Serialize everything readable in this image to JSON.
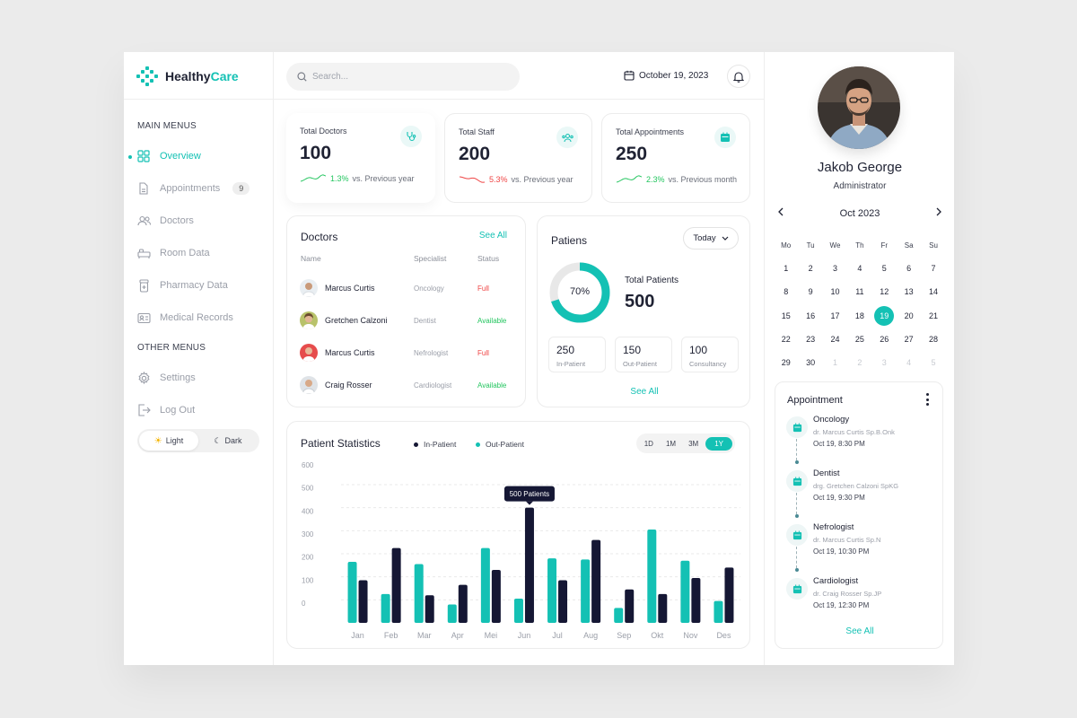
{
  "brand": {
    "name_part1": "Healthy",
    "name_part2": "Care"
  },
  "sidebar": {
    "main_heading": "MAIN MENUS",
    "other_heading": "OTHER MENUS",
    "main_items": [
      {
        "label": "Overview",
        "icon": "grid-icon",
        "active": true
      },
      {
        "label": "Appointments",
        "icon": "document-icon",
        "badge": "9"
      },
      {
        "label": "Doctors",
        "icon": "users-icon"
      },
      {
        "label": "Room Data",
        "icon": "bed-icon"
      },
      {
        "label": "Pharmacy Data",
        "icon": "pill-bottle-icon"
      },
      {
        "label": "Medical Records",
        "icon": "id-card-icon"
      }
    ],
    "other_items": [
      {
        "label": "Settings",
        "icon": "gear-icon"
      },
      {
        "label": "Log Out",
        "icon": "logout-icon"
      }
    ],
    "theme": {
      "light": "Light",
      "dark": "Dark",
      "selected": "Light"
    }
  },
  "header": {
    "search_placeholder": "Search...",
    "date": "October 19, 2023"
  },
  "stats": [
    {
      "title": "Total Doctors",
      "value": "100",
      "change": "1.3%",
      "direction": "up",
      "suffix": "vs. Previous year",
      "icon": "stethoscope-icon"
    },
    {
      "title": "Total Staff",
      "value": "200",
      "change": "5.3%",
      "direction": "down",
      "suffix": "vs. Previous year",
      "icon": "staff-icon"
    },
    {
      "title": "Total Appointments",
      "value": "250",
      "change": "2.3%",
      "direction": "up",
      "suffix": "vs. Previous month",
      "icon": "calendar-icon"
    }
  ],
  "doctors_card": {
    "title": "Doctors",
    "see_all": "See All",
    "columns": [
      "Name",
      "Specialist",
      "Status"
    ],
    "rows": [
      {
        "name": "Marcus Curtis",
        "specialist": "Oncology",
        "status": "Full"
      },
      {
        "name": "Gretchen Calzoni",
        "specialist": "Dentist",
        "status": "Available"
      },
      {
        "name": "Marcus Curtis",
        "specialist": "Nefrologist",
        "status": "Full"
      },
      {
        "name": "Craig Rosser",
        "specialist": "Cardiologist",
        "status": "Available"
      }
    ]
  },
  "patients_card": {
    "title": "Patiens",
    "filter": "Today",
    "percent": "70%",
    "percent_value": 70,
    "total_label": "Total Patients",
    "total_value": "500",
    "boxes": [
      {
        "value": "250",
        "label": "In-Patient"
      },
      {
        "value": "150",
        "label": "Out-Patient"
      },
      {
        "value": "100",
        "label": "Consultancy"
      }
    ],
    "see_all": "See All"
  },
  "statistics": {
    "title": "Patient Statistics",
    "legend_in": "In-Patient",
    "legend_out": "Out-Patient",
    "ranges": [
      "1D",
      "1M",
      "3M",
      "1Y"
    ],
    "selected_range": "1Y",
    "tooltip": "500 Patients",
    "colors": {
      "out": "#14c1b4",
      "in": "#151734"
    }
  },
  "chart_data": {
    "type": "bar",
    "categories": [
      "Jan",
      "Feb",
      "Mar",
      "Apr",
      "Mei",
      "Jun",
      "Jul",
      "Aug",
      "Sep",
      "Okt",
      "Nov",
      "Des"
    ],
    "series": [
      {
        "name": "Out-Patient",
        "values": [
          265,
          125,
          255,
          80,
          325,
          105,
          280,
          275,
          65,
          405,
          270,
          95
        ]
      },
      {
        "name": "In-Patient",
        "values": [
          185,
          325,
          120,
          165,
          230,
          500,
          185,
          360,
          145,
          125,
          195,
          240
        ]
      }
    ],
    "ylim": [
      0,
      600
    ],
    "yticks": [
      "0",
      "100",
      "200",
      "300",
      "400",
      "500",
      "600"
    ],
    "grid": true
  },
  "profile": {
    "name": "Jakob George",
    "role": "Administrator"
  },
  "calendar": {
    "month": "Oct 2023",
    "weekdays": [
      "Mo",
      "Tu",
      "We",
      "Th",
      "Fr",
      "Sa",
      "Su"
    ],
    "weeks": [
      [
        "1",
        "2",
        "3",
        "4",
        "5",
        "6",
        "7"
      ],
      [
        "8",
        "9",
        "10",
        "11",
        "12",
        "13",
        "14"
      ],
      [
        "15",
        "16",
        "17",
        "18",
        "19",
        "20",
        "21"
      ],
      [
        "22",
        "23",
        "24",
        "25",
        "26",
        "27",
        "28"
      ],
      [
        "29",
        "30",
        "1",
        "2",
        "3",
        "4",
        "5"
      ]
    ],
    "selected": "19"
  },
  "appointments": {
    "title": "Appointment",
    "items": [
      {
        "name": "Oncology",
        "doctor": "dr. Marcus Curtis Sp.B.Onk",
        "time": "Oct 19, 8:30 PM"
      },
      {
        "name": "Dentist",
        "doctor": "drg. Gretchen Calzoni SpKG",
        "time": "Oct 19, 9:30 PM"
      },
      {
        "name": "Nefrologist",
        "doctor": "dr. Marcus Curtis Sp.N",
        "time": "Oct 19, 10:30 PM"
      },
      {
        "name": "Cardiologist",
        "doctor": "dr. Craig Rosser Sp.JP",
        "time": "Oct 19, 12:30 PM"
      }
    ],
    "see_all": "See All"
  }
}
